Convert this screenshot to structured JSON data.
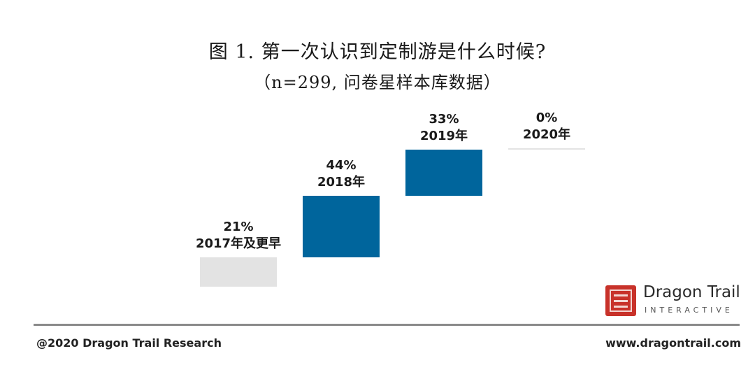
{
  "title": "图 1. 第一次认识到定制游是什么时候?",
  "subtitle": "（n=299, 问卷星样本库数据）",
  "chart_data": {
    "type": "bar",
    "title": "图 1. 第一次认识到定制游是什么时候?",
    "subtitle": "（n=299, 问卷星样本库数据）",
    "categories": [
      "2017年及更早",
      "2018年",
      "2019年",
      "2020年"
    ],
    "values": [
      21,
      44,
      33,
      0
    ],
    "value_labels": [
      "21%",
      "44%",
      "33%",
      "0%"
    ],
    "unit": "%",
    "colors": [
      "#e3e3e3",
      "#00659c",
      "#00659c",
      "#e3e3e3"
    ],
    "grid": false,
    "legend": "none"
  },
  "logo": {
    "name": "Dragon Trail",
    "tagline": "INTERACTIVE"
  },
  "footer": {
    "left": "@2020 Dragon Trail Research",
    "right": "www.dragontrail.com"
  }
}
